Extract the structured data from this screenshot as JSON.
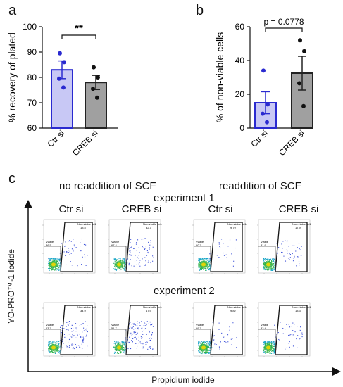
{
  "panel_labels": {
    "a": "a",
    "b": "b",
    "c": "c"
  },
  "chart_data": [
    {
      "type": "bar",
      "panel": "a",
      "title": "",
      "xlabel": "",
      "ylabel": "% recovery of plated",
      "categories": [
        "Ctr si",
        "CREB si"
      ],
      "values": [
        83,
        78
      ],
      "sem": [
        3.5,
        2.8
      ],
      "points": [
        [
          89.5,
          86,
          79.5,
          76
        ],
        [
          84,
          80,
          75.5,
          72
        ]
      ],
      "ylim": [
        60,
        100
      ],
      "yticks": [
        60,
        70,
        80,
        90,
        100
      ],
      "significance": "**",
      "colors": {
        "fill": [
          "#c8c8f5",
          "#a0a0a0"
        ],
        "edge": [
          "#2a2ad0",
          "#222222"
        ],
        "points": [
          "#2a2ad0",
          "#111111"
        ]
      },
      "grid": false
    },
    {
      "type": "bar",
      "panel": "b",
      "title": "",
      "xlabel": "",
      "ylabel": "% of non-viable cells",
      "categories": [
        "Ctr si",
        "CREB si"
      ],
      "values": [
        15,
        32.5
      ],
      "sem": [
        6.5,
        10
      ],
      "points": [
        [
          34,
          14,
          8.5,
          3.5
        ],
        [
          52,
          45.5,
          26.5,
          13
        ]
      ],
      "ylim": [
        0,
        60
      ],
      "yticks": [
        0,
        20,
        40,
        60
      ],
      "significance": "p = 0.0778",
      "colors": {
        "fill": [
          "#c8c8f5",
          "#a0a0a0"
        ],
        "edge": [
          "#2a2ad0",
          "#222222"
        ],
        "points": [
          "#2a2ad0",
          "#111111"
        ]
      },
      "grid": false
    }
  ],
  "panel_c": {
    "group_left": "no readdition of SCF",
    "group_right": "readdition of SCF",
    "experiment1": "experiment 1",
    "experiment2": "experiment 2",
    "col_labels": [
      "Ctr si",
      "CREB si",
      "Ctr si",
      "CREB si"
    ],
    "ylabel": "YO-PRO™-1 Iodide",
    "xlabel": "Propidium iodide",
    "gate_viable": "Viable",
    "gate_nonviable": "Non-viable cells",
    "plots": [
      {
        "row": 1,
        "col": 1,
        "viable": "86.5",
        "nonviable": "13.5"
      },
      {
        "row": 1,
        "col": 2,
        "viable": "67.4",
        "nonviable": "32.7"
      },
      {
        "row": 1,
        "col": 3,
        "viable": "90.7",
        "nonviable": "9.79"
      },
      {
        "row": 1,
        "col": 4,
        "viable": "81.9",
        "nonviable": "17.9"
      },
      {
        "row": 2,
        "col": 1,
        "viable": "63.7",
        "nonviable": "34.9"
      },
      {
        "row": 2,
        "col": 2,
        "viable": "51.7",
        "nonviable": "47.9"
      },
      {
        "row": 2,
        "col": 3,
        "viable": "89.7",
        "nonviable": "9.82"
      },
      {
        "row": 2,
        "col": 4,
        "viable": "83.4",
        "nonviable": "13.3"
      }
    ]
  }
}
